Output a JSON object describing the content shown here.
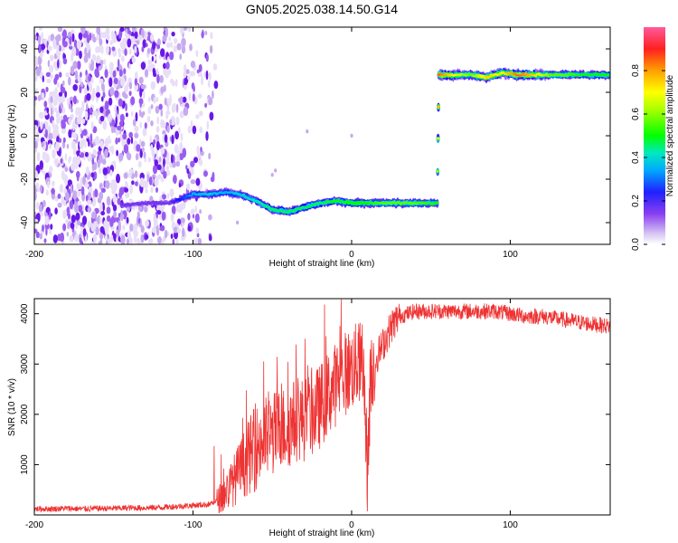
{
  "title": "GN05.2025.038.14.50.G14",
  "chart_data": [
    {
      "type": "heatmap",
      "xlabel": "Height of straight line (km)",
      "ylabel": "Frequency (Hz)",
      "xlim": [
        -200,
        163
      ],
      "ylim": [
        -50,
        50
      ],
      "xticks": [
        -200,
        -100,
        0,
        100
      ],
      "yticks": [
        -40,
        -20,
        0,
        20,
        40
      ],
      "colorbar": {
        "label": "Normalized spectral amplitude",
        "range": [
          0,
          1
        ],
        "ticks": [
          "0.0",
          "0.2",
          "0.4",
          "0.6",
          "0.8"
        ],
        "colormap": [
          "#e6dcf6",
          "#8a3ff0",
          "#1010ff",
          "#00b0ff",
          "#00e8c0",
          "#00ff00",
          "#a0ff00",
          "#ffff00",
          "#ffa000",
          "#ff2020",
          "#ff60a0"
        ]
      },
      "noise_region": {
        "x_range": [
          -200,
          -85
        ],
        "frequency_range": [
          -50,
          50
        ],
        "amplitude": "low"
      },
      "ridge": [
        {
          "x": -145,
          "frequency": -32,
          "amplitude": 0.12
        },
        {
          "x": -130,
          "frequency": -31,
          "amplitude": 0.12
        },
        {
          "x": -115,
          "frequency": -31,
          "amplitude": 0.12
        },
        {
          "x": -100,
          "frequency": -27,
          "amplitude": 0.3
        },
        {
          "x": -90,
          "frequency": -27,
          "amplitude": 0.35
        },
        {
          "x": -80,
          "frequency": -26,
          "amplitude": 0.3
        },
        {
          "x": -70,
          "frequency": -27,
          "amplitude": 0.35
        },
        {
          "x": -60,
          "frequency": -30,
          "amplitude": 0.4
        },
        {
          "x": -50,
          "frequency": -34,
          "amplitude": 0.45
        },
        {
          "x": -40,
          "frequency": -35,
          "amplitude": 0.45
        },
        {
          "x": -30,
          "frequency": -33,
          "amplitude": 0.45
        },
        {
          "x": -20,
          "frequency": -31,
          "amplitude": 0.45
        },
        {
          "x": -10,
          "frequency": -30,
          "amplitude": 0.5
        },
        {
          "x": 0,
          "frequency": -31,
          "amplitude": 0.5
        },
        {
          "x": 10,
          "frequency": -31,
          "amplitude": 0.5
        },
        {
          "x": 20,
          "frequency": -31,
          "amplitude": 0.55
        },
        {
          "x": 30,
          "frequency": -31,
          "amplitude": 0.55
        },
        {
          "x": 40,
          "frequency": -31,
          "amplitude": 0.55
        },
        {
          "x": 54,
          "frequency": -31,
          "amplitude": 0.5
        },
        {
          "x": 55,
          "frequency": 28,
          "amplitude": 0.85
        },
        {
          "x": 65,
          "frequency": 28,
          "amplitude": 0.7
        },
        {
          "x": 75,
          "frequency": 28,
          "amplitude": 0.55
        },
        {
          "x": 85,
          "frequency": 27,
          "amplitude": 0.75
        },
        {
          "x": 95,
          "frequency": 29,
          "amplitude": 0.7
        },
        {
          "x": 105,
          "frequency": 28,
          "amplitude": 0.85
        },
        {
          "x": 115,
          "frequency": 28,
          "amplitude": 0.75
        },
        {
          "x": 125,
          "frequency": 28,
          "amplitude": 0.55
        },
        {
          "x": 135,
          "frequency": 28,
          "amplitude": 0.55
        },
        {
          "x": 145,
          "frequency": 28,
          "amplitude": 0.5
        },
        {
          "x": 155,
          "frequency": 28,
          "amplitude": 0.5
        },
        {
          "x": 163,
          "frequency": 28,
          "amplitude": 0.5
        }
      ]
    },
    {
      "type": "line",
      "xlabel": "Height of straight line (km)",
      "ylabel": "SNR (10 * v/v)",
      "xlim": [
        -200,
        163
      ],
      "ylim": [
        0,
        4300
      ],
      "xticks": [
        -200,
        -100,
        0,
        100
      ],
      "yticks": [
        1000,
        2000,
        3000,
        4000
      ],
      "color": "#ee3333",
      "series": [
        {
          "values": [
            [
              -200,
              120
            ],
            [
              -190,
              120
            ],
            [
              -180,
              130
            ],
            [
              -170,
              120
            ],
            [
              -160,
              130
            ],
            [
              -150,
              130
            ],
            [
              -140,
              140
            ],
            [
              -130,
              140
            ],
            [
              -120,
              150
            ],
            [
              -110,
              170
            ],
            [
              -100,
              190
            ],
            [
              -90,
              210
            ],
            [
              -85,
              280
            ],
            [
              -80,
              420
            ],
            [
              -75,
              650
            ],
            [
              -70,
              900
            ],
            [
              -65,
              1150
            ],
            [
              -60,
              1350
            ],
            [
              -55,
              1500
            ],
            [
              -50,
              1600
            ],
            [
              -45,
              1700
            ],
            [
              -40,
              1750
            ],
            [
              -35,
              1900
            ],
            [
              -30,
              1900
            ],
            [
              -25,
              2000
            ],
            [
              -20,
              2150
            ],
            [
              -15,
              2400
            ],
            [
              -10,
              2600
            ],
            [
              -5,
              2800
            ],
            [
              0,
              2900
            ],
            [
              5,
              3050
            ],
            [
              8,
              2700
            ],
            [
              10,
              700
            ],
            [
              12,
              2800
            ],
            [
              15,
              3100
            ],
            [
              20,
              3400
            ],
            [
              25,
              3750
            ],
            [
              30,
              3950
            ],
            [
              35,
              4000
            ],
            [
              40,
              4050
            ],
            [
              50,
              4050
            ],
            [
              60,
              4050
            ],
            [
              70,
              4050
            ],
            [
              80,
              4050
            ],
            [
              90,
              4050
            ],
            [
              100,
              4000
            ],
            [
              110,
              3950
            ],
            [
              120,
              3950
            ],
            [
              130,
              3900
            ],
            [
              140,
              3850
            ],
            [
              150,
              3800
            ],
            [
              163,
              3750
            ]
          ]
        }
      ]
    }
  ]
}
